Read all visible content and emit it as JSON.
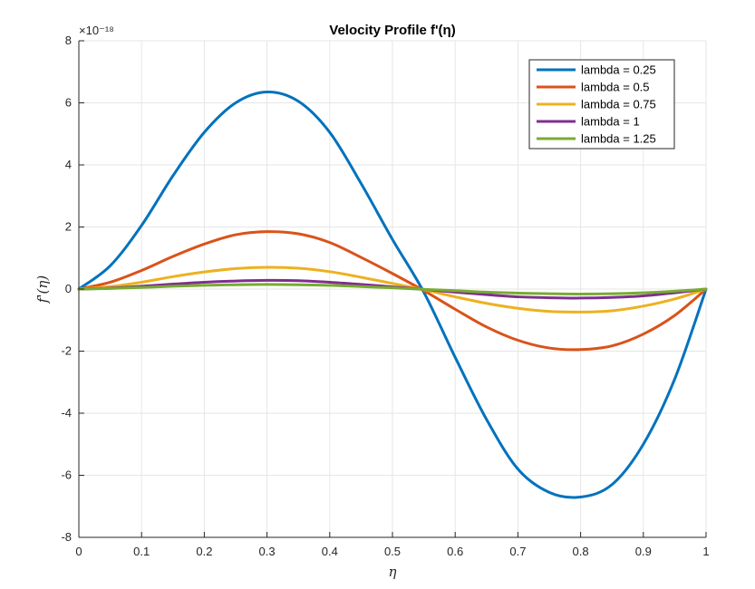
{
  "chart_data": {
    "type": "line",
    "title": "Velocity Profile f'(η)",
    "xlabel": "η",
    "ylabel": "f'(η)",
    "exponent_label": "×10⁻¹⁸",
    "xlim": [
      0,
      1
    ],
    "ylim": [
      -8,
      8
    ],
    "xticks": [
      0,
      0.1,
      0.2,
      0.3,
      0.4,
      0.5,
      0.6,
      0.7,
      0.8,
      0.9,
      1
    ],
    "xtick_labels": [
      "0",
      "0.1",
      "0.2",
      "0.3",
      "0.4",
      "0.5",
      "0.6",
      "0.7",
      "0.8",
      "0.9",
      "1"
    ],
    "yticks": [
      -8,
      -6,
      -4,
      -2,
      0,
      2,
      4,
      6,
      8
    ],
    "ytick_labels": [
      "-8",
      "-6",
      "-4",
      "-2",
      "0",
      "2",
      "4",
      "6",
      "8"
    ],
    "grid": true,
    "legend_position": "top-right",
    "x": [
      0,
      0.05,
      0.1,
      0.15,
      0.2,
      0.25,
      0.3,
      0.35,
      0.4,
      0.45,
      0.5,
      0.55,
      0.6,
      0.65,
      0.7,
      0.75,
      0.8,
      0.85,
      0.9,
      0.95,
      1
    ],
    "series": [
      {
        "name": "lambda = 0.25",
        "color": "#0072BD",
        "values": [
          0,
          0.75,
          2.05,
          3.65,
          5.05,
          6.0,
          6.35,
          6.05,
          5.05,
          3.4,
          1.6,
          -0.1,
          -2.2,
          -4.2,
          -5.8,
          -6.55,
          -6.7,
          -6.3,
          -5.0,
          -2.9,
          0
        ]
      },
      {
        "name": "lambda = 0.5",
        "color": "#D95319",
        "values": [
          0,
          0.22,
          0.6,
          1.05,
          1.45,
          1.75,
          1.85,
          1.78,
          1.5,
          1.02,
          0.5,
          -0.05,
          -0.65,
          -1.22,
          -1.65,
          -1.9,
          -1.95,
          -1.83,
          -1.45,
          -0.85,
          0
        ]
      },
      {
        "name": "lambda = 0.75",
        "color": "#EDB120",
        "values": [
          0,
          0.08,
          0.22,
          0.4,
          0.55,
          0.66,
          0.7,
          0.67,
          0.56,
          0.38,
          0.18,
          -0.02,
          -0.25,
          -0.46,
          -0.62,
          -0.72,
          -0.74,
          -0.7,
          -0.55,
          -0.32,
          0
        ]
      },
      {
        "name": "lambda = 1",
        "color": "#7E2F8E",
        "values": [
          0,
          0.03,
          0.09,
          0.16,
          0.22,
          0.26,
          0.28,
          0.27,
          0.22,
          0.15,
          0.07,
          -0.01,
          -0.1,
          -0.18,
          -0.25,
          -0.28,
          -0.29,
          -0.27,
          -0.22,
          -0.12,
          0
        ]
      },
      {
        "name": "lambda = 1.25",
        "color": "#77AC30",
        "values": [
          0,
          0.02,
          0.05,
          0.09,
          0.12,
          0.14,
          0.15,
          0.14,
          0.12,
          0.08,
          0.04,
          -0.01,
          -0.05,
          -0.1,
          -0.13,
          -0.15,
          -0.16,
          -0.15,
          -0.12,
          -0.07,
          0
        ]
      }
    ]
  }
}
